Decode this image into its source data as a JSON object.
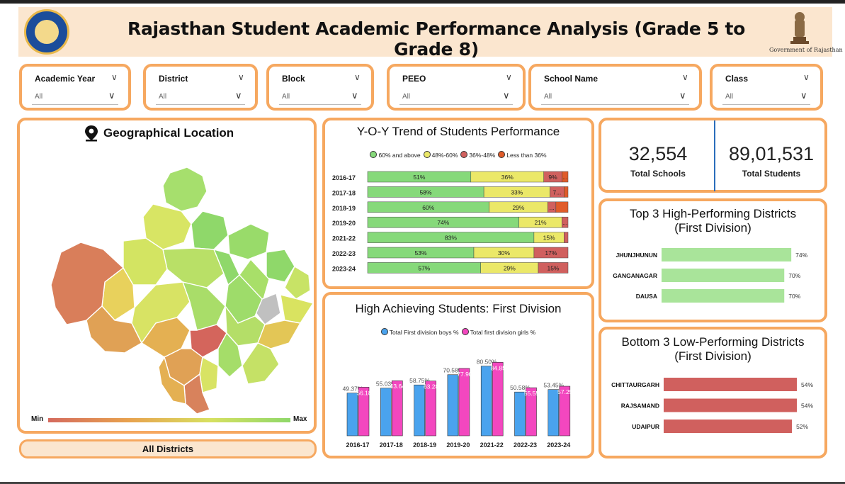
{
  "header": {
    "title": "Rajasthan Student Academic Performance Analysis (Grade 5 to Grade 8)",
    "logo_icon": "education-department-logo",
    "emblem_icon": "ashoka-emblem-icon",
    "emblem_label": "Government of Rajasthan"
  },
  "slicers": [
    {
      "label": "Academic Year",
      "value": "All"
    },
    {
      "label": "District",
      "value": "All"
    },
    {
      "label": "Block",
      "value": "All"
    },
    {
      "label": "PEEO",
      "value": "All"
    },
    {
      "label": "School Name",
      "value": "All"
    },
    {
      "label": "Class",
      "value": "All"
    }
  ],
  "map": {
    "title": "Geographical Location",
    "icon": "location-pin-icon",
    "legend_min": "Min",
    "legend_max": "Max",
    "selection": "All Districts",
    "colors": [
      "#d46a5e",
      "#e8a24e",
      "#d7e060",
      "#8fd86a"
    ]
  },
  "trend": {
    "title": "Y-O-Y Trend of Students Performance",
    "legend": [
      {
        "name": "60% and above",
        "color": "#86d97a"
      },
      {
        "name": "48%-60%",
        "color": "#ebe868"
      },
      {
        "name": "36%-48%",
        "color": "#d0605e"
      },
      {
        "name": "Less than 36%",
        "color": "#e05c2a"
      }
    ]
  },
  "kpis": {
    "schools_value": "32,554",
    "schools_label": "Total Schools",
    "students_value": "89,01,531",
    "students_label": "Total Students"
  },
  "first_division": {
    "title": "High Achieving Students: First Division",
    "legend": [
      {
        "name": "Total First division boys %",
        "color": "#4aa3ee"
      },
      {
        "name": "Total first division girls %",
        "color": "#f347bf"
      }
    ]
  },
  "top3": {
    "title_line1": "Top 3 High-Performing Districts",
    "title_line2": "(First Division)",
    "color": "#a9e49a"
  },
  "bottom3": {
    "title_line1": "Bottom 3 Low-Performing Districts",
    "title_line2": "(First Division)",
    "color": "#d0605e"
  },
  "chart_data": [
    {
      "type": "bar",
      "orientation": "horizontal",
      "stacked": true,
      "title": "Y-O-Y Trend of Students Performance",
      "categories": [
        "2016-17",
        "2017-18",
        "2018-19",
        "2019-20",
        "2021-22",
        "2022-23",
        "2023-24"
      ],
      "series": [
        {
          "name": "60% and above",
          "values": [
            51,
            58,
            60,
            74,
            83,
            53,
            57
          ],
          "labels": [
            "51%",
            "58%",
            "60%",
            "74%",
            "83%",
            "53%",
            "57%"
          ]
        },
        {
          "name": "48%-60%",
          "values": [
            36,
            33,
            29,
            21,
            15,
            30,
            29
          ],
          "labels": [
            "36%",
            "33%",
            "29%",
            "21%",
            "15%",
            "30%",
            "29%"
          ]
        },
        {
          "name": "36%-48%",
          "values": [
            9,
            7,
            4,
            3,
            2,
            17,
            15
          ],
          "labels": [
            "9%",
            "7...",
            "...",
            "...",
            "",
            "17%",
            "15%"
          ]
        },
        {
          "name": "Less than 36%",
          "values": [
            3,
            2,
            6,
            0,
            0,
            0,
            0
          ],
          "labels": [
            "...",
            "",
            "",
            "",
            "",
            "",
            ""
          ]
        }
      ],
      "xlim": [
        0,
        100
      ]
    },
    {
      "type": "bar",
      "title": "High Achieving Students: First Division",
      "categories": [
        "2016-17",
        "2017-18",
        "2018-19",
        "2019-20",
        "2021-22",
        "2022-23",
        "2023-24"
      ],
      "series": [
        {
          "name": "Total First division boys %",
          "values": [
            49.37,
            55.03,
            58.75,
            70.58,
            80.5,
            50.58,
            53.45
          ],
          "labels": [
            "49.37%",
            "55.03%",
            "58.75%",
            "70.58%",
            "80.50%",
            "50.58%",
            "53.45%"
          ]
        },
        {
          "name": "Total first division girls %",
          "values": [
            56.18,
            63.64,
            63.28,
            77.9,
            84.85,
            55.55,
            57.25
          ],
          "labels": [
            "56.18",
            "63.64",
            "63.28",
            "77.90",
            "84.85",
            "55.55",
            "57.25"
          ]
        }
      ],
      "ylim": [
        0,
        90
      ]
    },
    {
      "type": "bar",
      "orientation": "horizontal",
      "title": "Top 3 High-Performing Districts (First Division)",
      "categories": [
        "JHUNJHUNUN",
        "GANGANAGAR",
        "DAUSA"
      ],
      "values": [
        74,
        70,
        70
      ],
      "labels": [
        "74%",
        "70%",
        "70%"
      ],
      "xlim": [
        0,
        80
      ]
    },
    {
      "type": "bar",
      "orientation": "horizontal",
      "title": "Bottom 3 Low-Performing Districts (First Division)",
      "categories": [
        "CHITTAURGARH",
        "RAJSAMAND",
        "UDAIPUR"
      ],
      "values": [
        54,
        54,
        52
      ],
      "labels": [
        "54%",
        "54%",
        "52%"
      ],
      "xlim": [
        0,
        56
      ]
    }
  ]
}
